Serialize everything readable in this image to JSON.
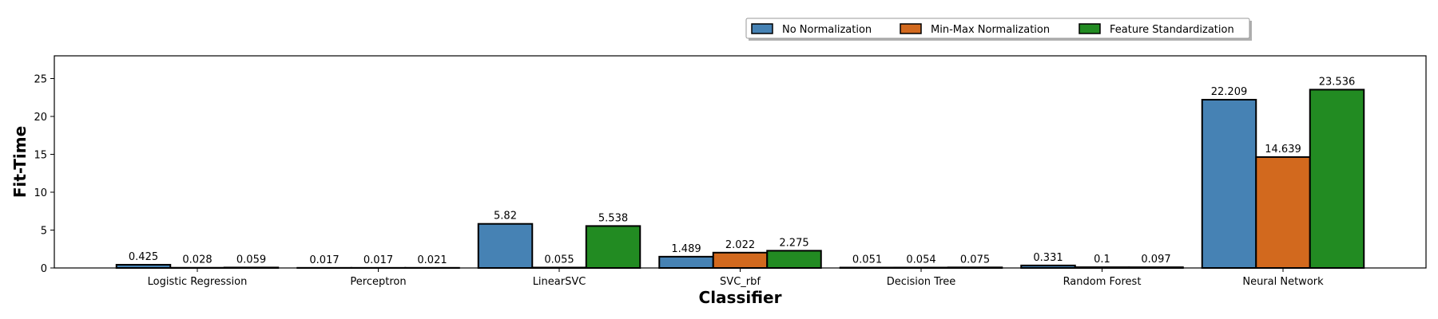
{
  "chart_data": {
    "type": "bar",
    "xlabel": "Classifier",
    "ylabel": "Fit-Time",
    "ylim": [
      0,
      28
    ],
    "yticks": [
      0,
      5,
      10,
      15,
      20,
      25
    ],
    "categories": [
      "Logistic Regression",
      "Perceptron",
      "LinearSVC",
      "SVC_rbf",
      "Decision Tree",
      "Random Forest",
      "Neural Network"
    ],
    "series": [
      {
        "name": "No Normalization",
        "color": "#4682b4",
        "values": [
          0.425,
          0.017,
          5.82,
          1.489,
          0.051,
          0.331,
          22.209
        ],
        "labels": [
          "0.425",
          "0.017",
          "5.82",
          "1.489",
          "0.051",
          "0.331",
          "22.209"
        ]
      },
      {
        "name": "Min-Max Normalization",
        "color": "#d2691e",
        "values": [
          0.028,
          0.017,
          0.055,
          2.022,
          0.054,
          0.1,
          14.639
        ],
        "labels": [
          "0.028",
          "0.017",
          "0.055",
          "2.022",
          "0.054",
          "0.1",
          "14.639"
        ]
      },
      {
        "name": "Feature Standardization",
        "color": "#228b22",
        "values": [
          0.059,
          0.021,
          5.538,
          2.275,
          0.075,
          0.097,
          23.536
        ],
        "labels": [
          "0.059",
          "0.021",
          "5.538",
          "2.275",
          "0.075",
          "0.097",
          "23.536"
        ]
      }
    ],
    "legend_position": "top-right, above plot",
    "grid": false
  }
}
